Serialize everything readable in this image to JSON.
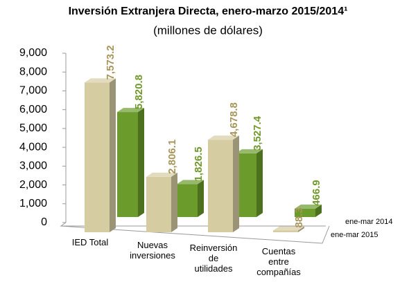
{
  "chart_data": {
    "type": "bar3d",
    "title": "Inversión Extranjera Directa, enero-marzo 2015/2014¹",
    "subtitle": "(millones de dólares)",
    "categories": [
      "IED Total",
      "Nuevas inversiones",
      "Reinversión de utilidades",
      "Cuentas entre compañías"
    ],
    "series": [
      {
        "name": "ene-mar 2015",
        "color": "#d6cca2",
        "values": [
          7573.2,
          2806.1,
          4678.8,
          88.3
        ],
        "value_labels": [
          "7,573.2",
          "2,806.1",
          "4,678.8",
          "88.3"
        ],
        "label_color": "#a8955a"
      },
      {
        "name": "ene-mar 2014",
        "color": "#6b9b2b",
        "values": [
          5820.8,
          1826.5,
          3527.4,
          466.9
        ],
        "value_labels": [
          "5,820.8",
          "1,826.5",
          "3,527.4",
          "466.9"
        ],
        "label_color": "#6f9a2a"
      }
    ],
    "ylim": [
      0,
      9000
    ],
    "yticks": [
      0,
      {
        "value": 1000,
        "label": "1,000"
      },
      {
        "value": 2000,
        "label": "2,000"
      },
      {
        "value": 3000,
        "label": "3,000"
      },
      {
        "value": 4000,
        "label": "4,000"
      },
      {
        "value": 5000,
        "label": "5,000"
      },
      {
        "value": 6000,
        "label": "6,000"
      },
      {
        "value": 7000,
        "label": "7,000"
      },
      {
        "value": 8000,
        "label": "8,000"
      },
      {
        "value": 9000,
        "label": "9,000"
      }
    ]
  }
}
